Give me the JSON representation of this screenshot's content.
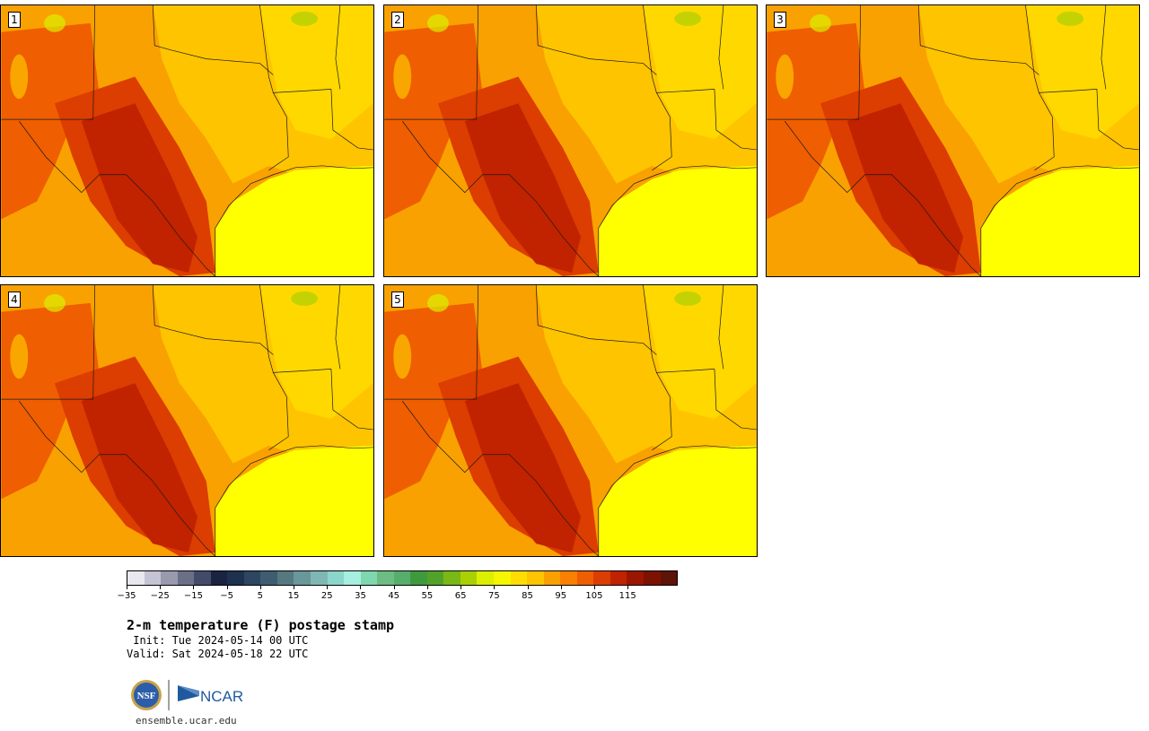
{
  "panels": [
    {
      "label": "1"
    },
    {
      "label": "2"
    },
    {
      "label": "3"
    },
    {
      "label": "4"
    },
    {
      "label": "5"
    }
  ],
  "colorbar": {
    "colors": [
      "#e8e8ee",
      "#c4c4d4",
      "#9a9aae",
      "#6c7086",
      "#434b6a",
      "#1a2440",
      "#1e3150",
      "#2d4661",
      "#3f5d70",
      "#56797f",
      "#69979a",
      "#7fb7b4",
      "#8ad6cb",
      "#a6efe0",
      "#7fd7b0",
      "#6cbc84",
      "#57ad6b",
      "#3f9a3e",
      "#52a22a",
      "#7ab816",
      "#aad003",
      "#dcef00",
      "#f6f600",
      "#ffdd00",
      "#ffc400",
      "#f9a100",
      "#f98000",
      "#ef5e00",
      "#dc3d00",
      "#c12200",
      "#9b1600",
      "#7c1200",
      "#5e1406"
    ],
    "tick_labels": [
      "−35",
      "−25",
      "−15",
      "−5",
      "5",
      "15",
      "25",
      "35",
      "45",
      "55",
      "65",
      "75",
      "85",
      "95",
      "105",
      "115"
    ]
  },
  "title": "2-m temperature (F) postage stamp",
  "init": " Init: Tue 2024-05-14 00 UTC",
  "valid": "Valid: Sat 2024-05-18 22 UTC",
  "logos": {
    "nsf": "NSF",
    "ncar": "NCAR"
  },
  "site": "ensemble.ucar.edu"
}
